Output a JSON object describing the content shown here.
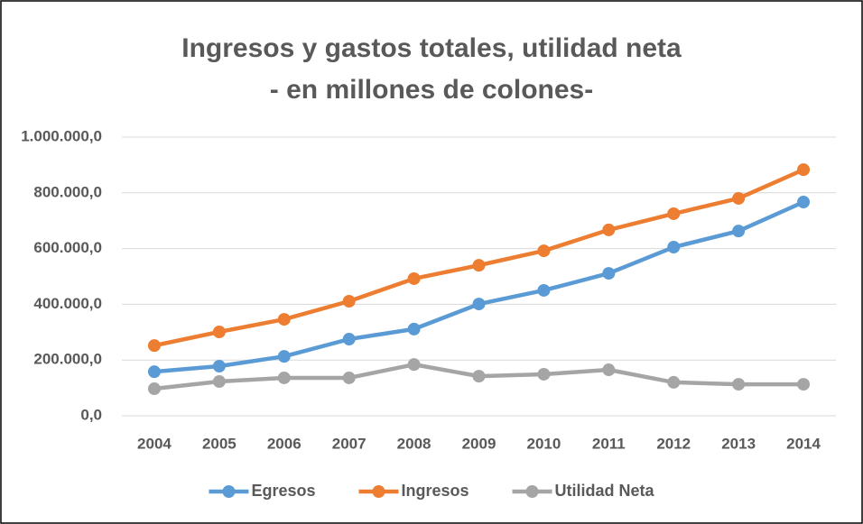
{
  "chart_data": {
    "type": "line",
    "title": "Ingresos y gastos totales, utilidad neta",
    "subtitle": "- en millones de colones-",
    "categories": [
      "2004",
      "2005",
      "2006",
      "2007",
      "2008",
      "2009",
      "2010",
      "2011",
      "2012",
      "2013",
      "2014"
    ],
    "series": [
      {
        "name": "Egresos",
        "color": "#5b9bd5",
        "values": [
          158000,
          178000,
          213000,
          275000,
          311000,
          401000,
          450000,
          511000,
          605000,
          663000,
          767000
        ]
      },
      {
        "name": "Ingresos",
        "color": "#ed7d31",
        "values": [
          252000,
          301000,
          346000,
          411000,
          492000,
          540000,
          592000,
          667000,
          725000,
          780000,
          883000
        ]
      },
      {
        "name": "Utilidad Neta",
        "color": "#a5a5a5",
        "values": [
          97000,
          123000,
          136000,
          136000,
          184000,
          142000,
          149000,
          165000,
          120000,
          113000,
          113000
        ]
      }
    ],
    "ylim": [
      0,
      1000000
    ],
    "yticks": [
      {
        "value": 0,
        "label": "0,0"
      },
      {
        "value": 200000,
        "label": "200.000,0"
      },
      {
        "value": 400000,
        "label": "400.000,0"
      },
      {
        "value": 600000,
        "label": "600.000,0"
      },
      {
        "value": 800000,
        "label": "800.000,0"
      },
      {
        "value": 1000000,
        "label": "1.000.000,0"
      }
    ],
    "grid": true,
    "legend": "bottom"
  }
}
